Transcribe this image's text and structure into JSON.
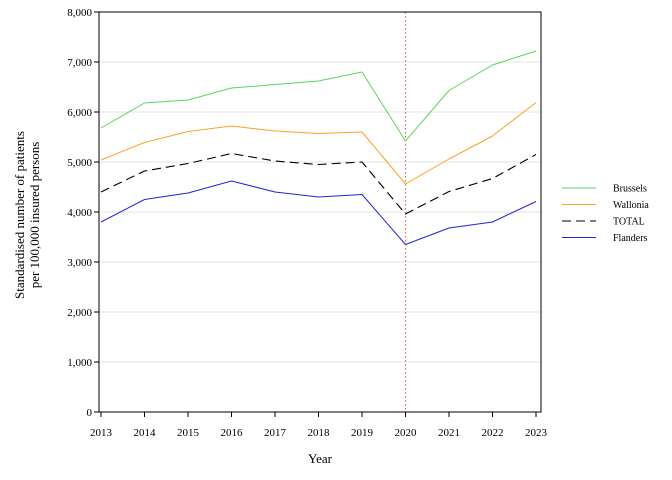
{
  "chart_data": {
    "type": "line",
    "xlabel": "Year",
    "ylabel_lines": [
      "Standardised number of patients",
      "per 100,000 insured persons"
    ],
    "x": [
      2013,
      2014,
      2015,
      2016,
      2017,
      2018,
      2019,
      2020,
      2021,
      2022,
      2023
    ],
    "x_tick_labels": [
      "2013",
      "2014",
      "2015",
      "2016",
      "2017",
      "2018",
      "2019",
      "2020",
      "2021",
      "2022",
      "2023"
    ],
    "ylim": [
      0,
      8000
    ],
    "y_ticks": [
      0,
      1000,
      2000,
      3000,
      4000,
      5000,
      6000,
      7000,
      8000
    ],
    "y_tick_labels": [
      "0",
      "1,000",
      "2,000",
      "3,000",
      "4,000",
      "5,000",
      "6,000",
      "7,000",
      "8,000"
    ],
    "grid": "horizontal",
    "reference_line": {
      "x": 2020,
      "color": "#e06070",
      "style": "dotted"
    },
    "legend_position": "right",
    "series": [
      {
        "name": "Brussels",
        "color": "#5cd65c",
        "dash": "solid",
        "values": [
          5680,
          6180,
          6240,
          6480,
          6550,
          6620,
          6800,
          5420,
          6430,
          6940,
          7220
        ]
      },
      {
        "name": "Wallonia",
        "color": "#ffa126",
        "dash": "solid",
        "values": [
          5040,
          5390,
          5610,
          5720,
          5620,
          5570,
          5600,
          4560,
          5060,
          5520,
          6190
        ]
      },
      {
        "name": "TOTAL",
        "color": "#000000",
        "dash": "dashed",
        "values": [
          4400,
          4820,
          4970,
          5170,
          5020,
          4950,
          5000,
          3960,
          4410,
          4670,
          5150
        ]
      },
      {
        "name": "Flanders",
        "color": "#2323d9",
        "dash": "solid",
        "values": [
          3800,
          4250,
          4380,
          4620,
          4400,
          4300,
          4350,
          3350,
          3680,
          3800,
          4210
        ]
      }
    ]
  }
}
